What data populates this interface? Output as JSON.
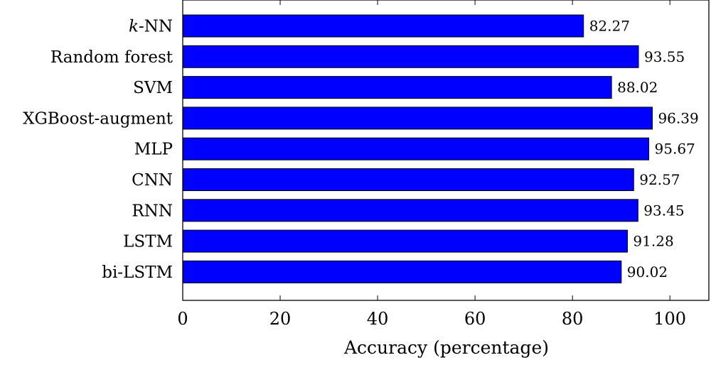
{
  "chart_data": {
    "type": "bar",
    "orientation": "horizontal",
    "categories": [
      "k-NN",
      "Random forest",
      "SVM",
      "XGBoost-augment",
      "MLP",
      "CNN",
      "RNN",
      "LSTM",
      "bi-LSTM"
    ],
    "values": [
      82.27,
      93.55,
      88.02,
      96.39,
      95.67,
      92.57,
      93.45,
      91.28,
      90.02
    ],
    "value_labels": [
      "82.27",
      "93.55",
      "88.02",
      "96.39",
      "95.67",
      "92.57",
      "93.45",
      "91.28",
      "90.02"
    ],
    "title": "",
    "xlabel": "Accuracy (percentage)",
    "ylabel": "",
    "xlim": [
      0,
      108
    ],
    "xticks": [
      0,
      20,
      40,
      60,
      80,
      100
    ],
    "xtick_labels": [
      "0",
      "20",
      "40",
      "60",
      "80",
      "100"
    ],
    "grid": false,
    "legend": null,
    "bar_color": "#0000ff",
    "bar_edge_color": "#000000"
  }
}
